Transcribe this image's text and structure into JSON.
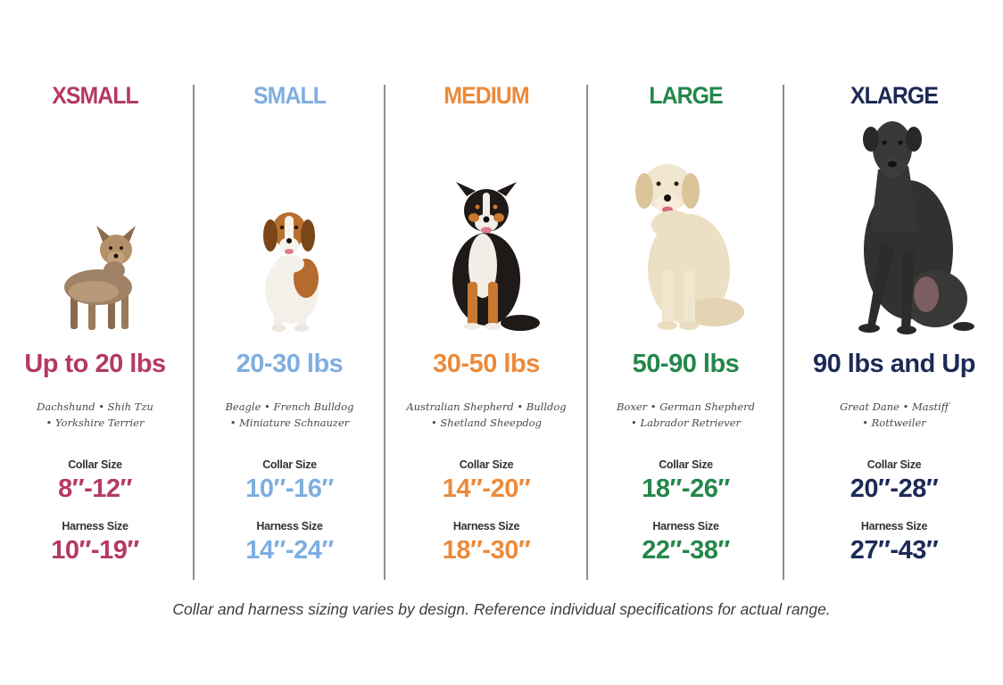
{
  "colors": {
    "xsmall": "#b43a63",
    "small": "#7eaee0",
    "medium": "#ec8a3a",
    "large": "#24874a",
    "xlarge": "#1d2a55"
  },
  "sizes": [
    {
      "title": "XSMALL",
      "weight": "Up to 20 lbs",
      "breeds_line1": "Dachshund • Shih Tzu",
      "breeds_line2": "• Yorkshire Terrier",
      "collar_label": "Collar Size",
      "collar_value": "8″-12″",
      "harness_label": "Harness Size",
      "harness_value": "10″-19″",
      "dog_icon": "yorkshire-terrier-photo"
    },
    {
      "title": "SMALL",
      "weight": "20-30 lbs",
      "breeds_line1": "Beagle • French Bulldog",
      "breeds_line2": "• Miniature Schnauzer",
      "collar_label": "Collar Size",
      "collar_value": "10″-16″",
      "harness_label": "Harness Size",
      "harness_value": "14″-24″",
      "dog_icon": "beagle-photo"
    },
    {
      "title": "MEDIUM",
      "weight": "30-50 lbs",
      "breeds_line1": "Australian Shepherd • Bulldog",
      "breeds_line2": "• Shetland Sheepdog",
      "collar_label": "Collar Size",
      "collar_value": "14″-20″",
      "harness_label": "Harness Size",
      "harness_value": "18″-30″",
      "dog_icon": "australian-shepherd-photo"
    },
    {
      "title": "LARGE",
      "weight": "50-90 lbs",
      "breeds_line1": "Boxer • German Shepherd",
      "breeds_line2": "• Labrador Retriever",
      "collar_label": "Collar Size",
      "collar_value": "18″-26″",
      "harness_label": "Harness Size",
      "harness_value": "22″-38″",
      "dog_icon": "labrador-retriever-photo"
    },
    {
      "title": "XLARGE",
      "weight": "90 lbs and Up",
      "breeds_line1": "Great Dane • Mastiff",
      "breeds_line2": "• Rottweiler",
      "collar_label": "Collar Size",
      "collar_value": "20″-28″",
      "harness_label": "Harness Size",
      "harness_value": "27″-43″",
      "dog_icon": "great-dane-photo"
    }
  ],
  "footnote": "Collar and harness sizing varies by design. Reference individual specifications for actual range."
}
